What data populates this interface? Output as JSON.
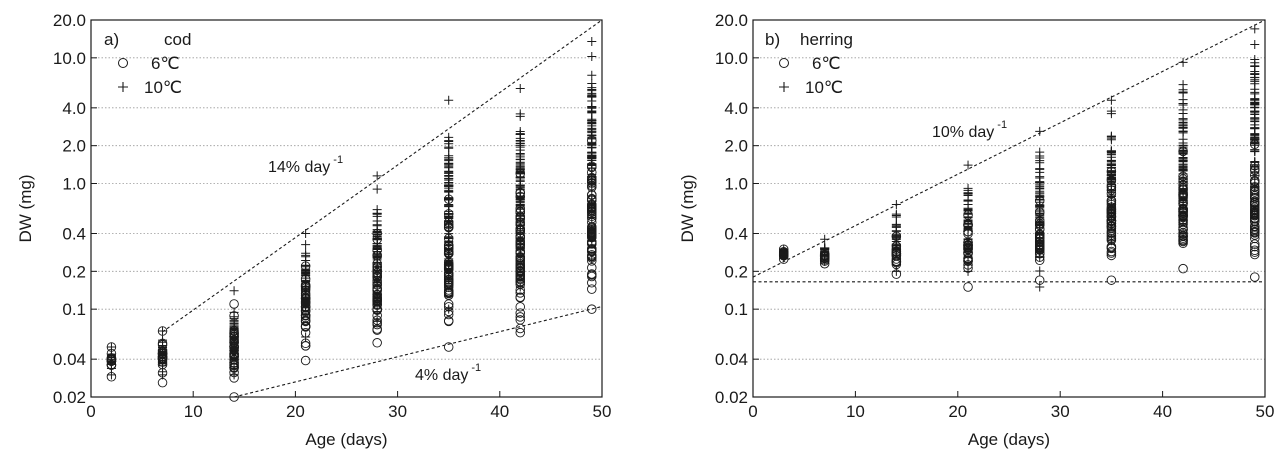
{
  "chart_data": [
    {
      "type": "scatter",
      "panel_label": "a)",
      "panel_name": "cod",
      "xlabel": "Age (days)",
      "ylabel": "DW (mg)",
      "xlim": [
        0,
        50
      ],
      "ylim": [
        0.02,
        20
      ],
      "y_scale": "log",
      "grid": "horizontal dotted",
      "legend_placement": "top-left",
      "x_ticks": [
        "0",
        "10",
        "20",
        "30",
        "40",
        "50"
      ],
      "x_tick_values": [
        0,
        10,
        20,
        30,
        40,
        50
      ],
      "y_ticks": [
        "20.0",
        "10.0",
        "4.0",
        "2.0",
        "1.0",
        "0.4",
        "0.2",
        "0.1",
        "0.04",
        "0.02"
      ],
      "y_tick_values": [
        20,
        10,
        4,
        2,
        1,
        0.4,
        0.2,
        0.1,
        0.04,
        0.02
      ],
      "series": [
        {
          "name": "6℃",
          "marker": "circle",
          "points": [
            {
              "x": 2,
              "min": 0.029,
              "max": 0.05
            },
            {
              "x": 7,
              "min": 0.026,
              "max": 0.067
            },
            {
              "x": 14,
              "min": 0.02,
              "max": 0.11
            },
            {
              "x": 21,
              "min": 0.039,
              "max": 0.22
            },
            {
              "x": 28,
              "min": 0.054,
              "max": 0.4
            },
            {
              "x": 35,
              "min": 0.05,
              "max": 0.75
            },
            {
              "x": 42,
              "min": 0.065,
              "max": 1.2
            },
            {
              "x": 49,
              "min": 0.1,
              "max": 2.2
            }
          ]
        },
        {
          "name": "10℃",
          "marker": "plus",
          "points": [
            {
              "x": 2,
              "min": 0.03,
              "max": 0.05
            },
            {
              "x": 7,
              "min": 0.03,
              "max": 0.067
            },
            {
              "x": 14,
              "min": 0.03,
              "max": 0.14
            },
            {
              "x": 21,
              "min": 0.06,
              "max": 0.4
            },
            {
              "x": 28,
              "min": 0.08,
              "max": 1.15
            },
            {
              "x": 35,
              "min": 0.1,
              "max": 4.6
            },
            {
              "x": 42,
              "min": 0.15,
              "max": 5.7
            },
            {
              "x": 49,
              "min": 0.25,
              "max": 13.5
            }
          ]
        }
      ],
      "trend_lines": [
        {
          "label": "14% day",
          "sup": "-1",
          "from": [
            7,
            0.066
          ],
          "to": [
            50,
            20
          ]
        },
        {
          "label": "4% day",
          "sup": "-1",
          "from": [
            14,
            0.02
          ],
          "to": [
            50,
            0.105
          ]
        }
      ]
    },
    {
      "type": "scatter",
      "panel_label": "b)",
      "panel_name": "herring",
      "xlabel": "Age (days)",
      "ylabel": "DW (mg)",
      "xlim": [
        0,
        50
      ],
      "ylim": [
        0.02,
        20
      ],
      "y_scale": "log",
      "grid": "horizontal dotted",
      "legend_placement": "top-left",
      "x_ticks": [
        "0",
        "10",
        "20",
        "30",
        "40",
        "50"
      ],
      "x_tick_values": [
        0,
        10,
        20,
        30,
        40,
        50
      ],
      "y_ticks": [
        "20.0",
        "10.0",
        "4.0",
        "2.0",
        "1.0",
        "0.4",
        "0.2",
        "0.1",
        "0.04",
        "0.02"
      ],
      "y_tick_values": [
        20,
        10,
        4,
        2,
        1,
        0.4,
        0.2,
        0.1,
        0.04,
        0.02
      ],
      "series": [
        {
          "name": "6℃",
          "marker": "circle",
          "points": [
            {
              "x": 3,
              "min": 0.25,
              "max": 0.3
            },
            {
              "x": 7,
              "min": 0.23,
              "max": 0.28
            },
            {
              "x": 14,
              "min": 0.19,
              "max": 0.38
            },
            {
              "x": 21,
              "min": 0.15,
              "max": 0.56
            },
            {
              "x": 28,
              "min": 0.17,
              "max": 0.73
            },
            {
              "x": 35,
              "min": 0.17,
              "max": 1.25
            },
            {
              "x": 42,
              "min": 0.21,
              "max": 1.8
            },
            {
              "x": 49,
              "min": 0.18,
              "max": 2.05
            }
          ]
        },
        {
          "name": "10℃",
          "marker": "plus",
          "points": [
            {
              "x": 3,
              "min": 0.26,
              "max": 0.3
            },
            {
              "x": 7,
              "min": 0.24,
              "max": 0.36
            },
            {
              "x": 14,
              "min": 0.2,
              "max": 0.68
            },
            {
              "x": 21,
              "min": 0.2,
              "max": 1.4
            },
            {
              "x": 28,
              "min": 0.15,
              "max": 2.6
            },
            {
              "x": 35,
              "min": 0.35,
              "max": 4.6
            },
            {
              "x": 42,
              "min": 0.4,
              "max": 9.2
            },
            {
              "x": 49,
              "min": 0.6,
              "max": 17
            }
          ]
        }
      ],
      "trend_lines": [
        {
          "label": "10% day",
          "sup": "-1",
          "from": [
            0,
            0.18
          ],
          "to": [
            50,
            20
          ]
        },
        {
          "label": "",
          "sup": "",
          "from": [
            0,
            0.165
          ],
          "to": [
            50,
            0.165
          ]
        }
      ]
    }
  ]
}
